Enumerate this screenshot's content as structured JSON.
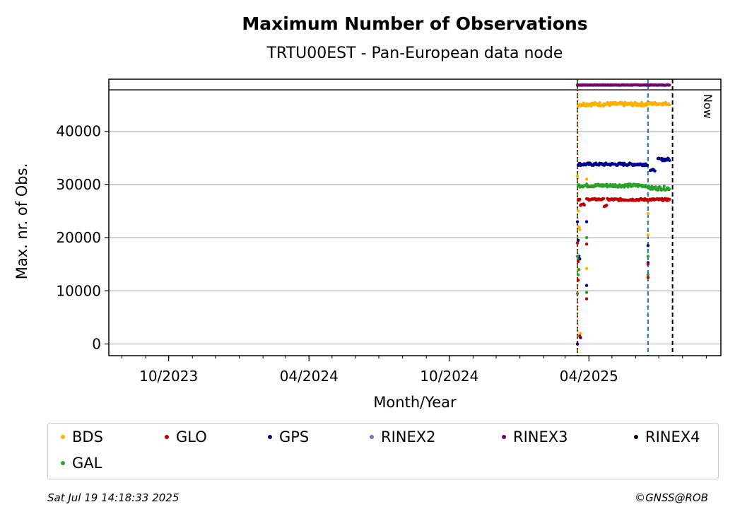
{
  "chart_data": {
    "type": "scatter",
    "title": "Maximum Number of Observations",
    "subtitle": "TRTU00EST - Pan-European data node",
    "xlabel": "Month/Year",
    "ylabel": "Max. nr. of Obs.",
    "x_ticks": [
      "10/2023",
      "04/2024",
      "10/2024",
      "04/2025"
    ],
    "y_ticks": [
      0,
      10000,
      20000,
      30000,
      40000
    ],
    "xlim": [
      "2023-07-15",
      "2025-09-20"
    ],
    "ylim": [
      -2200,
      49800
    ],
    "grid": "horizontal",
    "legend_placement": "below",
    "now_label": "Now",
    "vlines": [
      {
        "date": "2025-03-17",
        "color": "#2ca02c",
        "style": "dashed"
      },
      {
        "date": "2025-03-17",
        "color": "#c00000",
        "style": "dotted"
      },
      {
        "date": "2025-06-17",
        "color": "#1f77b4",
        "style": "dashed"
      },
      {
        "date": "2025-07-19",
        "color": "#000000",
        "style": "dashed"
      }
    ],
    "hlines": [
      {
        "y": 47800,
        "color": "#000000"
      }
    ],
    "x_start": "2025-03-17",
    "x_end": "2025-07-15",
    "series": [
      {
        "name": "BDS",
        "color": "#ffb000",
        "segments": [
          {
            "from": "2025-03-18",
            "to": "2025-06-16",
            "y": 45100,
            "jitter": 350
          },
          {
            "from": "2025-06-18",
            "to": "2025-07-15",
            "y": 45200,
            "jitter": 250
          }
        ],
        "outliers": [
          {
            "date": "2025-03-17",
            "y": 31500
          },
          {
            "date": "2025-03-18",
            "y": 25000
          },
          {
            "date": "2025-03-18",
            "y": 14000
          },
          {
            "date": "2025-03-19",
            "y": 22000
          },
          {
            "date": "2025-03-20",
            "y": 21500
          },
          {
            "date": "2025-03-21",
            "y": 2000
          },
          {
            "date": "2025-03-29",
            "y": 31000
          },
          {
            "date": "2025-03-29",
            "y": 14200
          },
          {
            "date": "2025-06-17",
            "y": 24500
          },
          {
            "date": "2025-06-17",
            "y": 20500
          }
        ]
      },
      {
        "name": "GLO",
        "color": "#c00000",
        "segments": [
          {
            "from": "2025-03-18",
            "to": "2025-03-20",
            "y": 27200,
            "jitter": 200
          },
          {
            "from": "2025-03-21",
            "to": "2025-03-26",
            "y": 26200,
            "jitter": 150
          },
          {
            "from": "2025-03-29",
            "to": "2025-04-20",
            "y": 27200,
            "jitter": 150
          },
          {
            "from": "2025-04-21",
            "to": "2025-04-24",
            "y": 26000,
            "jitter": 150
          },
          {
            "from": "2025-04-25",
            "to": "2025-07-15",
            "y": 27150,
            "jitter": 200
          }
        ],
        "outliers": [
          {
            "date": "2025-03-17",
            "y": 19000
          },
          {
            "date": "2025-03-18",
            "y": 15500
          },
          {
            "date": "2025-03-18",
            "y": 12000
          },
          {
            "date": "2025-03-20",
            "y": 1500
          },
          {
            "date": "2025-03-29",
            "y": 18800
          },
          {
            "date": "2025-03-29",
            "y": 8500
          },
          {
            "date": "2025-06-17",
            "y": 15000
          },
          {
            "date": "2025-06-17",
            "y": 12500
          }
        ]
      },
      {
        "name": "GPS",
        "color": "#00008b",
        "segments": [
          {
            "from": "2025-03-18",
            "to": "2025-06-16",
            "y": 33800,
            "jitter": 250
          },
          {
            "from": "2025-06-20",
            "to": "2025-06-26",
            "y": 32700,
            "jitter": 150
          },
          {
            "from": "2025-06-30",
            "to": "2025-07-15",
            "y": 34700,
            "jitter": 250
          }
        ],
        "outliers": [
          {
            "date": "2025-03-17",
            "y": 23000
          },
          {
            "date": "2025-03-17",
            "y": 0
          },
          {
            "date": "2025-03-18",
            "y": 19500
          },
          {
            "date": "2025-03-19",
            "y": 16500
          },
          {
            "date": "2025-03-20",
            "y": 16000
          },
          {
            "date": "2025-03-21",
            "y": 1200
          },
          {
            "date": "2025-03-29",
            "y": 23000
          },
          {
            "date": "2025-03-29",
            "y": 11000
          },
          {
            "date": "2025-06-17",
            "y": 18500
          },
          {
            "date": "2025-06-17",
            "y": 15300
          }
        ]
      },
      {
        "name": "RINEX2",
        "color": "#8070b8",
        "segments": [],
        "outliers": []
      },
      {
        "name": "RINEX3",
        "color": "#6a0a6a",
        "segments": [
          {
            "from": "2025-03-17",
            "to": "2025-07-15",
            "y": 48700,
            "jitter": 40
          }
        ],
        "outliers": []
      },
      {
        "name": "RINEX4",
        "color": "#1a0010",
        "segments": [],
        "outliers": []
      },
      {
        "name": "GAL",
        "color": "#2ca02c",
        "segments": [
          {
            "from": "2025-03-18",
            "to": "2025-06-16",
            "y": 29800,
            "jitter": 300
          },
          {
            "from": "2025-06-18",
            "to": "2025-07-15",
            "y": 29300,
            "jitter": 350
          }
        ],
        "outliers": [
          {
            "date": "2025-03-17",
            "y": 16500
          },
          {
            "date": "2025-03-17",
            "y": 9500
          },
          {
            "date": "2025-03-18",
            "y": 13000
          },
          {
            "date": "2025-03-19",
            "y": 14000
          },
          {
            "date": "2025-03-29",
            "y": 20000
          },
          {
            "date": "2025-03-29",
            "y": 9700
          },
          {
            "date": "2025-06-17",
            "y": 16500
          },
          {
            "date": "2025-06-17",
            "y": 13000
          }
        ]
      }
    ]
  },
  "legend": {
    "items": [
      {
        "label": "BDS",
        "color": "#ffb000"
      },
      {
        "label": "GLO",
        "color": "#c00000"
      },
      {
        "label": "GPS",
        "color": "#00008b"
      },
      {
        "label": "RINEX2",
        "color": "#8070b8"
      },
      {
        "label": "RINEX3",
        "color": "#6a0a6a"
      },
      {
        "label": "RINEX4",
        "color": "#1a0010"
      },
      {
        "label": "GAL",
        "color": "#2ca02c"
      }
    ]
  },
  "footer": {
    "timestamp": "Sat Jul 19 14:18:33 2025",
    "copyright": "©GNSS@ROB"
  }
}
